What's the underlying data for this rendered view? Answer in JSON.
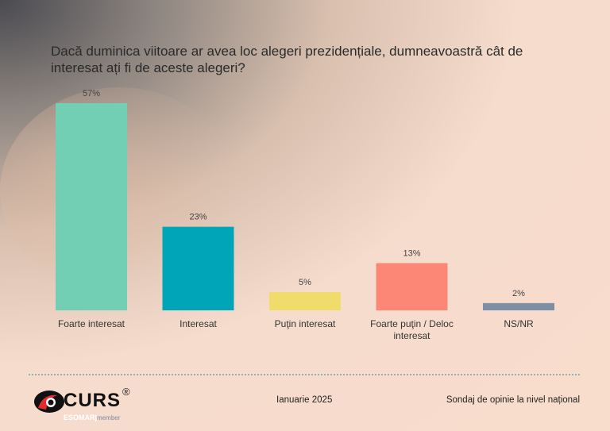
{
  "chart_data": {
    "type": "bar",
    "title": "Dacă duminica viitoare ar avea loc alegeri prezidențiale, dumneavoastră cât de interesat ați fi de aceste alegeri?",
    "categories": [
      "Foarte interesat",
      "Interesat",
      "Puţin interesat",
      "Foarte puţin / Deloc interesat",
      "NS/NR"
    ],
    "values": [
      57,
      23,
      5,
      13,
      2
    ],
    "data_labels": [
      "57%",
      "23%",
      "5%",
      "13%",
      "2%"
    ],
    "colors": [
      "#72cfb4",
      "#00a5b8",
      "#efdc6a",
      "#fd8776",
      "#7f8fa3"
    ],
    "ylim": [
      0,
      57
    ],
    "grid": false,
    "unit": "%"
  },
  "footer": {
    "logo": "CURS",
    "logo_reg": "®",
    "esomar": "ESOMAR",
    "member": "member",
    "date": "Ianuarie 2025",
    "survey": "Sondaj de opinie la nivel național"
  }
}
